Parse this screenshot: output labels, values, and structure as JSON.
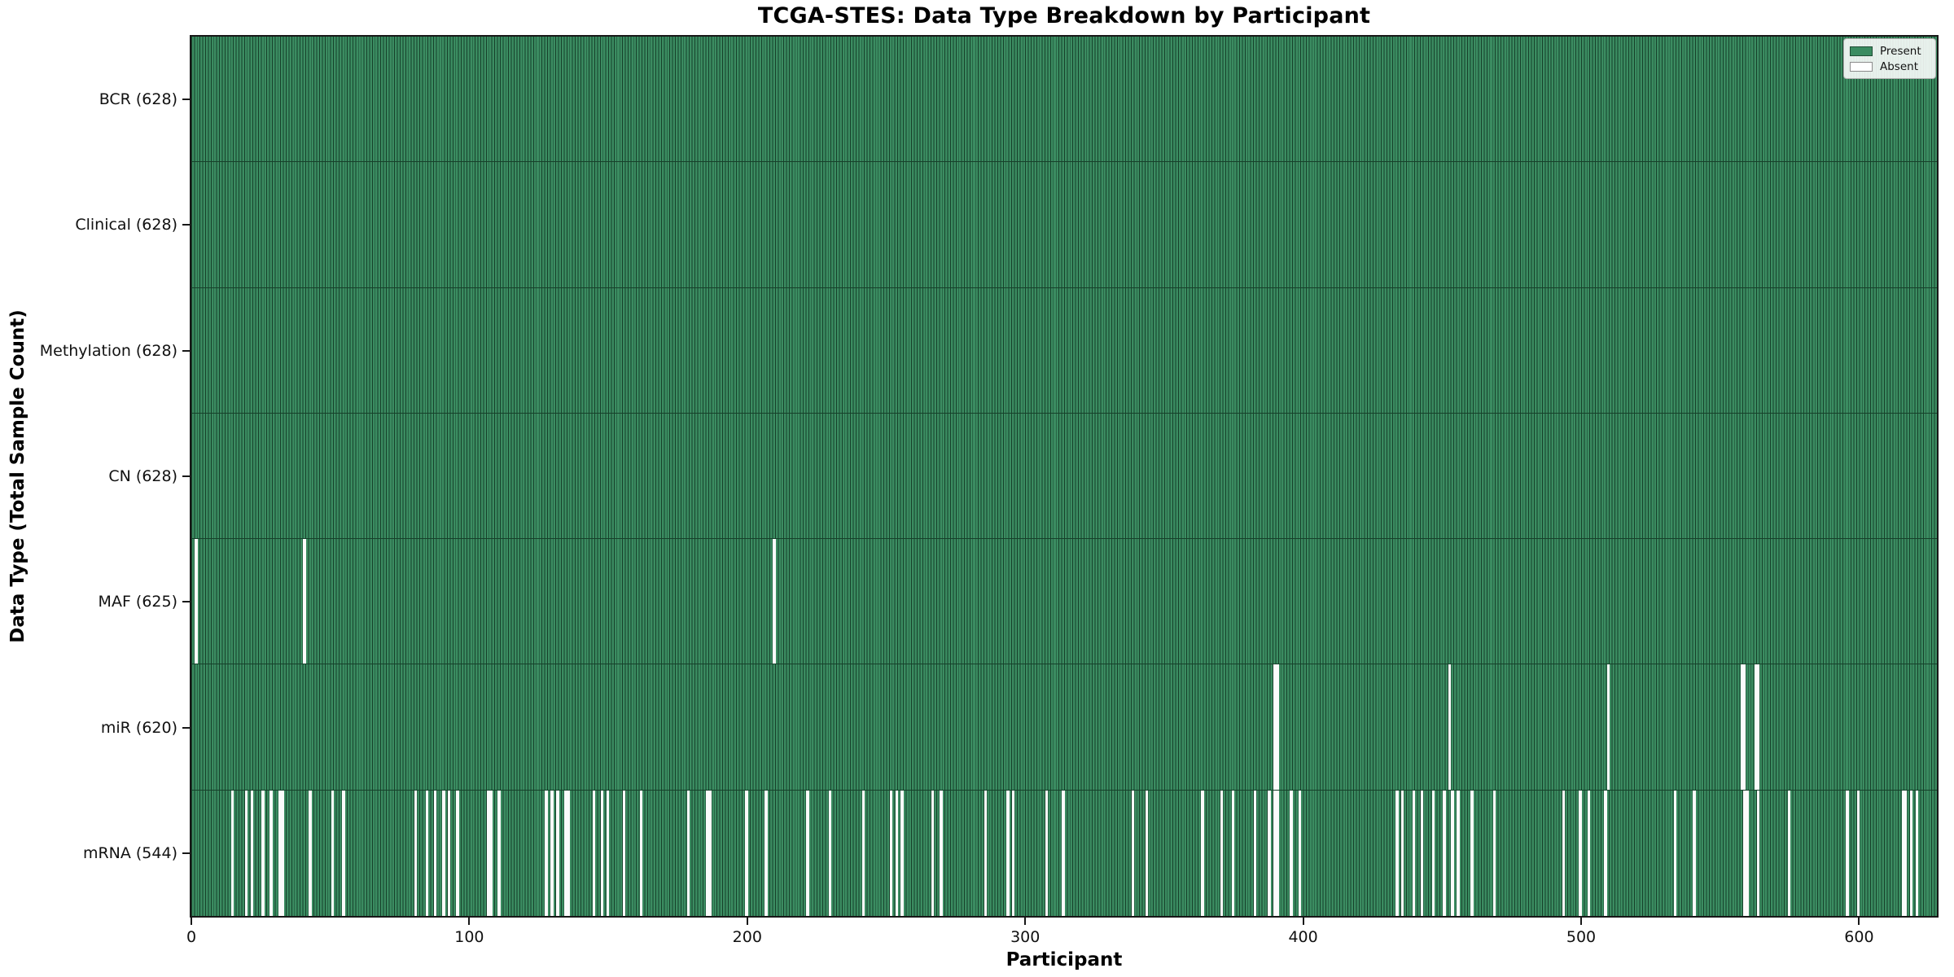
{
  "chart_data": {
    "type": "heatmap",
    "title": "TCGA-STES: Data Type Breakdown by Participant",
    "xlabel": "Participant",
    "ylabel": "Data Type (Total Sample Count)",
    "x_ticks": [
      0,
      100,
      200,
      300,
      400,
      500,
      600
    ],
    "x_range": [
      0,
      628
    ],
    "n_participants": 628,
    "grid": false,
    "legend": {
      "position": "upper-right",
      "items": [
        {
          "label": "Present",
          "color": "#3B8C61"
        },
        {
          "label": "Absent",
          "color": "#FFFFFF"
        }
      ]
    },
    "colors": {
      "present": "#3B8C61",
      "absent": "#FBFBFB",
      "bar_edge": "#16402A"
    },
    "rows": [
      {
        "name": "BCR",
        "label": "BCR (628)",
        "present_count": 628,
        "absent_participants": []
      },
      {
        "name": "Clinical",
        "label": "Clinical (628)",
        "present_count": 628,
        "absent_participants": []
      },
      {
        "name": "Methylation",
        "label": "Methylation (628)",
        "present_count": 628,
        "absent_participants": []
      },
      {
        "name": "CN",
        "label": "CN (628)",
        "present_count": 628,
        "absent_participants": []
      },
      {
        "name": "MAF",
        "label": "MAF (625)",
        "present_count": 625,
        "absent_participants": [
          1,
          40,
          209
        ]
      },
      {
        "name": "miR",
        "label": "miR (620)",
        "present_count": 620,
        "absent_participants": [
          389,
          390,
          452,
          509,
          557,
          558,
          562,
          563
        ]
      },
      {
        "name": "mRNA",
        "label": "mRNA (544)",
        "present_count": 544,
        "absent_participants": [
          14,
          19,
          21,
          25,
          28,
          31,
          32,
          42,
          50,
          54,
          80,
          84,
          87,
          90,
          92,
          95,
          106,
          107,
          110,
          127,
          129,
          131,
          134,
          135,
          144,
          147,
          149,
          155,
          161,
          178,
          185,
          186,
          199,
          206,
          221,
          229,
          241,
          251,
          253,
          255,
          266,
          269,
          285,
          293,
          295,
          307,
          313,
          338,
          343,
          363,
          370,
          374,
          382,
          387,
          389,
          390,
          395,
          398,
          433,
          435,
          439,
          442,
          446,
          450,
          453,
          455,
          460,
          468,
          493,
          499,
          502,
          508,
          533,
          540,
          558,
          559,
          563,
          574,
          595,
          599,
          615,
          616,
          618,
          620
        ]
      }
    ]
  }
}
